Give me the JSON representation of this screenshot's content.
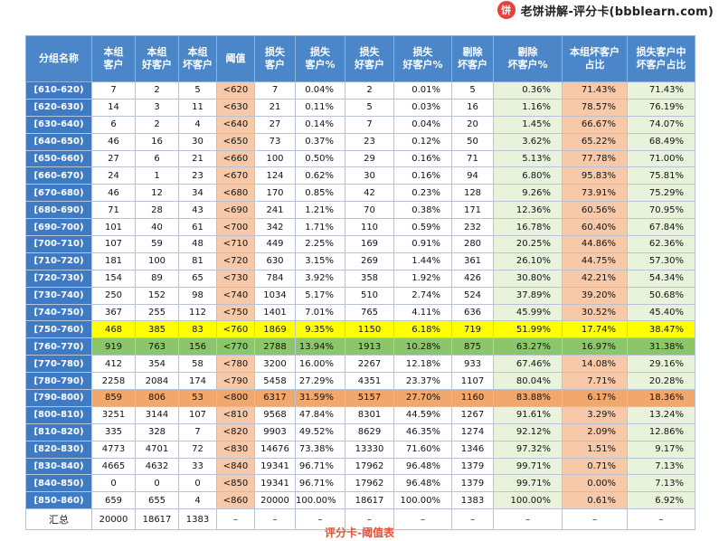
{
  "brand": {
    "logo_char": "饼",
    "text": "老饼讲解-评分卡(bbblearn.com)"
  },
  "headers": [
    "分组名称",
    "本组\n客户",
    "本组\n好客户",
    "本组\n坏客户",
    "阈值",
    "损失\n客户",
    "损失\n客户%",
    "损失\n好客户",
    "损失\n好客户%",
    "剔除\n坏客户",
    "剔除\n坏客户%",
    "本组坏客户\n占比",
    "损失客户中\n坏客户占比"
  ],
  "rows": [
    [
      "[610-620)",
      "7",
      "2",
      "5",
      "<620",
      "7",
      "0.04%",
      "2",
      "0.01%",
      "5",
      "0.36%",
      "71.43%",
      "71.43%"
    ],
    [
      "[620-630)",
      "14",
      "3",
      "11",
      "<630",
      "21",
      "0.11%",
      "5",
      "0.03%",
      "16",
      "1.16%",
      "78.57%",
      "76.19%"
    ],
    [
      "[630-640)",
      "6",
      "2",
      "4",
      "<640",
      "27",
      "0.14%",
      "7",
      "0.04%",
      "20",
      "1.45%",
      "66.67%",
      "74.07%"
    ],
    [
      "[640-650)",
      "46",
      "16",
      "30",
      "<650",
      "73",
      "0.37%",
      "23",
      "0.12%",
      "50",
      "3.62%",
      "65.22%",
      "68.49%"
    ],
    [
      "[650-660)",
      "27",
      "6",
      "21",
      "<660",
      "100",
      "0.50%",
      "29",
      "0.16%",
      "71",
      "5.13%",
      "77.78%",
      "71.00%"
    ],
    [
      "[660-670)",
      "24",
      "1",
      "23",
      "<670",
      "124",
      "0.62%",
      "30",
      "0.16%",
      "94",
      "6.80%",
      "95.83%",
      "75.81%"
    ],
    [
      "[670-680)",
      "46",
      "12",
      "34",
      "<680",
      "170",
      "0.85%",
      "42",
      "0.23%",
      "128",
      "9.26%",
      "73.91%",
      "75.29%"
    ],
    [
      "[680-690)",
      "71",
      "28",
      "43",
      "<690",
      "241",
      "1.21%",
      "70",
      "0.38%",
      "171",
      "12.36%",
      "60.56%",
      "70.95%"
    ],
    [
      "[690-700)",
      "101",
      "40",
      "61",
      "<700",
      "342",
      "1.71%",
      "110",
      "0.59%",
      "232",
      "16.78%",
      "60.40%",
      "67.84%"
    ],
    [
      "[700-710)",
      "107",
      "59",
      "48",
      "<710",
      "449",
      "2.25%",
      "169",
      "0.91%",
      "280",
      "20.25%",
      "44.86%",
      "62.36%"
    ],
    [
      "[710-720)",
      "181",
      "100",
      "81",
      "<720",
      "630",
      "3.15%",
      "269",
      "1.44%",
      "361",
      "26.10%",
      "44.75%",
      "57.30%"
    ],
    [
      "[720-730)",
      "154",
      "89",
      "65",
      "<730",
      "784",
      "3.92%",
      "358",
      "1.92%",
      "426",
      "30.80%",
      "42.21%",
      "54.34%"
    ],
    [
      "[730-740)",
      "250",
      "152",
      "98",
      "<740",
      "1034",
      "5.17%",
      "510",
      "2.74%",
      "524",
      "37.89%",
      "39.20%",
      "50.68%"
    ],
    [
      "[740-750)",
      "367",
      "255",
      "112",
      "<750",
      "1401",
      "7.01%",
      "765",
      "4.11%",
      "636",
      "45.99%",
      "30.52%",
      "45.40%"
    ],
    [
      "[750-760)",
      "468",
      "385",
      "83",
      "<760",
      "1869",
      "9.35%",
      "1150",
      "6.18%",
      "719",
      "51.99%",
      "17.74%",
      "38.47%"
    ],
    [
      "[760-770)",
      "919",
      "763",
      "156",
      "<770",
      "2788",
      "13.94%",
      "1913",
      "10.28%",
      "875",
      "63.27%",
      "16.97%",
      "31.38%"
    ],
    [
      "[770-780)",
      "412",
      "354",
      "58",
      "<780",
      "3200",
      "16.00%",
      "2267",
      "12.18%",
      "933",
      "67.46%",
      "14.08%",
      "29.16%"
    ],
    [
      "[780-790)",
      "2258",
      "2084",
      "174",
      "<790",
      "5458",
      "27.29%",
      "4351",
      "23.37%",
      "1107",
      "80.04%",
      "7.71%",
      "20.28%"
    ],
    [
      "[790-800)",
      "859",
      "806",
      "53",
      "<800",
      "6317",
      "31.59%",
      "5157",
      "27.70%",
      "1160",
      "83.88%",
      "6.17%",
      "18.36%"
    ],
    [
      "[800-810)",
      "3251",
      "3144",
      "107",
      "<810",
      "9568",
      "47.84%",
      "8301",
      "44.59%",
      "1267",
      "91.61%",
      "3.29%",
      "13.24%"
    ],
    [
      "[810-820)",
      "335",
      "328",
      "7",
      "<820",
      "9903",
      "49.52%",
      "8629",
      "46.35%",
      "1274",
      "92.12%",
      "2.09%",
      "12.86%"
    ],
    [
      "[820-830)",
      "4773",
      "4701",
      "72",
      "<830",
      "14676",
      "73.38%",
      "13330",
      "71.60%",
      "1346",
      "97.32%",
      "1.51%",
      "9.17%"
    ],
    [
      "[830-840)",
      "4665",
      "4632",
      "33",
      "<840",
      "19341",
      "96.71%",
      "17962",
      "96.48%",
      "1379",
      "99.71%",
      "0.71%",
      "7.13%"
    ],
    [
      "[840-850)",
      "0",
      "0",
      "0",
      "<850",
      "19341",
      "96.71%",
      "17962",
      "96.48%",
      "1379",
      "99.71%",
      "0.00%",
      "7.13%"
    ],
    [
      "[850-860)",
      "659",
      "655",
      "4",
      "<860",
      "20000",
      "100.00%",
      "18617",
      "100.00%",
      "1383",
      "100.00%",
      "0.61%",
      "6.92%"
    ]
  ],
  "highlights": {
    "yellow": 14,
    "green": 15,
    "orange": 18
  },
  "total": [
    "汇总",
    "20000",
    "18617",
    "1383",
    "–",
    "–",
    "–",
    "–",
    "–",
    "–",
    "–",
    "–",
    "–"
  ],
  "caption": "评分卡-阈值表"
}
